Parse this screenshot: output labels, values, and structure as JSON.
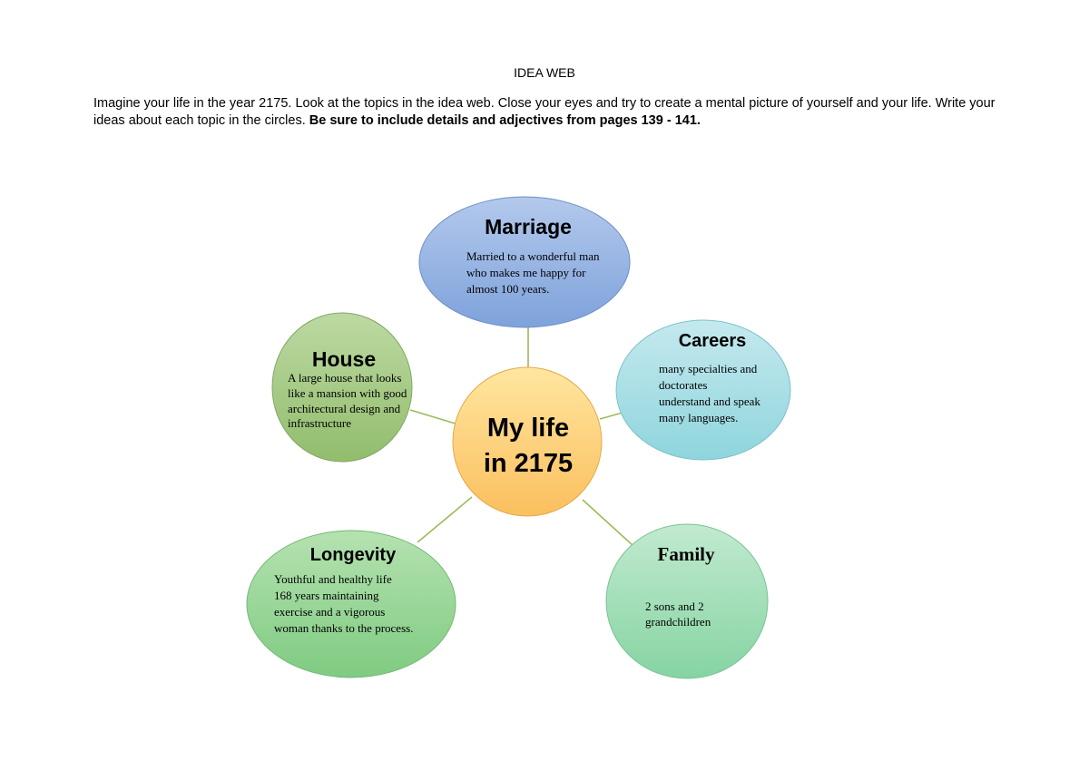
{
  "document": {
    "title": "IDEA WEB",
    "instructions": "Imagine your life in the year 2175. Look at the topics in the idea web. Close your eyes and try to create a mental picture of yourself and your life. Write your ideas about each topic in the circles.",
    "instructions_bold": "Be sure to include details and adjectives from pages 139 - 141."
  },
  "diagram": {
    "center": {
      "line1": "My life",
      "line2": "in 2175"
    },
    "nodes": {
      "marriage": {
        "title": "Marriage",
        "lines": [
          "Married to a wonderful man",
          "who makes me happy for",
          "almost 100 years."
        ]
      },
      "careers": {
        "title": "Careers",
        "lines": [
          "many specialties and",
          "doctorates",
          "understand and speak",
          "many languages."
        ]
      },
      "house": {
        "title": "House",
        "lines": [
          "A large house that looks",
          "like a mansion with good",
          "architectural design and",
          "infrastructure"
        ]
      },
      "longevity": {
        "title": "Longevity",
        "lines": [
          "Youthful and healthy life",
          "168 years maintaining",
          "exercise and a vigorous",
          "woman thanks to the process."
        ]
      },
      "family": {
        "title": "Family",
        "lines": [
          "2 sons and 2",
          "grandchildren"
        ]
      }
    },
    "colors": {
      "connector": "#9bbb59",
      "center_fill_top": "#ffe08a",
      "center_fill_bottom": "#fbc46a",
      "marriage_fill": "#8eb0e0",
      "careers_fill": "#a6dde3",
      "house_fill": "#a2c87f",
      "longevity_fill": "#93d08e",
      "family_fill": "#9fdcb4"
    }
  }
}
